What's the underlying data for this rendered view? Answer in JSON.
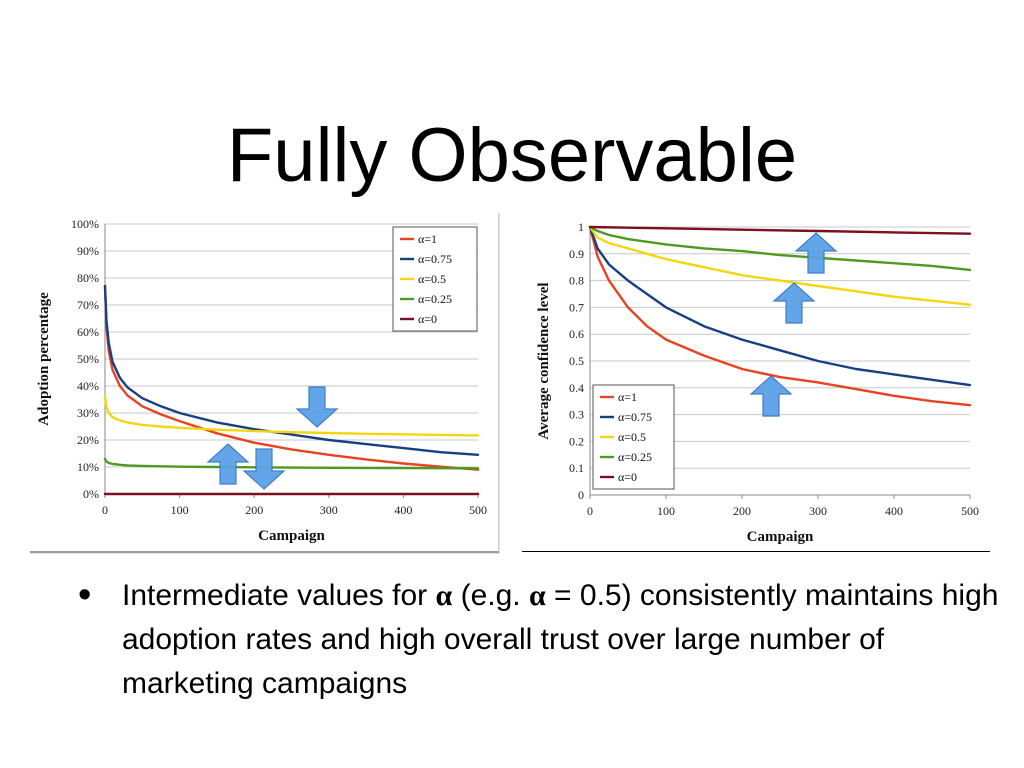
{
  "slide": {
    "title": "Fully Observable",
    "bullet": {
      "part1": "Intermediate values for ",
      "alpha1": "α",
      "part2": " (e.g. ",
      "alpha2": "α",
      "part3": " = 0.5) consistently maintains high adoption rates and high overall trust over large number of marketing campaigns"
    }
  },
  "colors": {
    "alpha_1": "#e8431f",
    "alpha_075": "#163f84",
    "alpha_05": "#f5d60e",
    "alpha_025": "#4e9a1f",
    "alpha_0": "#7a1020",
    "arrow": "#5aa1e8"
  },
  "chart_data": [
    {
      "type": "line",
      "xlabel": "Campaign",
      "ylabel": "Adoption percentage",
      "xlim": [
        0,
        500
      ],
      "ylim": [
        0,
        100
      ],
      "xticks": [
        "0",
        "100",
        "200",
        "300",
        "400",
        "500"
      ],
      "yticks": [
        "0%",
        "10%",
        "20%",
        "30%",
        "40%",
        "50%",
        "60%",
        "70%",
        "80%",
        "90%",
        "100%"
      ],
      "grid": true,
      "legend_position": "top-right",
      "series": [
        {
          "name": "α=1",
          "color_key": "alpha_1",
          "x": [
            0,
            2,
            5,
            10,
            20,
            30,
            50,
            75,
            100,
            150,
            200,
            250,
            300,
            350,
            400,
            450,
            500
          ],
          "y": [
            77,
            62,
            53,
            46,
            40,
            36.5,
            32.5,
            29.5,
            27,
            22.5,
            19,
            16.5,
            14.5,
            12.8,
            11.3,
            10.1,
            9
          ]
        },
        {
          "name": "α=0.75",
          "color_key": "alpha_075",
          "x": [
            0,
            2,
            5,
            10,
            20,
            30,
            50,
            75,
            100,
            150,
            200,
            250,
            300,
            350,
            400,
            450,
            500
          ],
          "y": [
            77,
            64,
            56,
            49,
            43,
            39.5,
            35.5,
            32.5,
            30,
            26.5,
            24,
            22,
            20,
            18.5,
            17,
            15.5,
            14.5
          ]
        },
        {
          "name": "α=0.5",
          "color_key": "alpha_05",
          "x": [
            0,
            2,
            5,
            10,
            20,
            30,
            50,
            75,
            100,
            150,
            200,
            250,
            300,
            350,
            400,
            450,
            500
          ],
          "y": [
            36,
            32,
            30,
            28.5,
            27.2,
            26.5,
            25.6,
            25,
            24.5,
            23.8,
            23.3,
            22.9,
            22.6,
            22.3,
            22.1,
            21.9,
            21.7
          ]
        },
        {
          "name": "α=0.25",
          "color_key": "alpha_025",
          "x": [
            0,
            2,
            5,
            10,
            20,
            30,
            50,
            100,
            150,
            200,
            300,
            400,
            500
          ],
          "y": [
            13,
            12,
            11.5,
            11.1,
            10.8,
            10.6,
            10.4,
            10.1,
            10,
            9.9,
            9.7,
            9.6,
            9.5
          ]
        },
        {
          "name": "α=0",
          "color_key": "alpha_0",
          "x": [
            0,
            500
          ],
          "y": [
            0,
            0
          ]
        }
      ]
    },
    {
      "type": "line",
      "xlabel": "Campaign",
      "ylabel": "Average confidence level",
      "xlim": [
        0,
        500
      ],
      "ylim": [
        0,
        1
      ],
      "xticks": [
        "0",
        "100",
        "200",
        "300",
        "400",
        "500"
      ],
      "yticks": [
        "0",
        "0.1",
        "0.2",
        "0.3",
        "0.4",
        "0.5",
        "0.6",
        "0.7",
        "0.8",
        "0.9",
        "1"
      ],
      "grid": true,
      "legend_position": "bottom-left",
      "series": [
        {
          "name": "α=1",
          "color_key": "alpha_1",
          "x": [
            0,
            10,
            25,
            50,
            75,
            100,
            150,
            200,
            250,
            300,
            350,
            400,
            450,
            500
          ],
          "y": [
            1,
            0.89,
            0.8,
            0.7,
            0.63,
            0.58,
            0.52,
            0.47,
            0.44,
            0.42,
            0.395,
            0.37,
            0.35,
            0.335
          ]
        },
        {
          "name": "α=0.75",
          "color_key": "alpha_075",
          "x": [
            0,
            10,
            25,
            50,
            75,
            100,
            150,
            200,
            250,
            300,
            350,
            400,
            450,
            500
          ],
          "y": [
            1,
            0.92,
            0.86,
            0.8,
            0.75,
            0.7,
            0.63,
            0.58,
            0.54,
            0.5,
            0.47,
            0.45,
            0.43,
            0.41
          ]
        },
        {
          "name": "α=0.5",
          "color_key": "alpha_05",
          "x": [
            0,
            10,
            25,
            50,
            100,
            150,
            200,
            250,
            300,
            350,
            400,
            450,
            500
          ],
          "y": [
            1,
            0.96,
            0.94,
            0.92,
            0.88,
            0.85,
            0.82,
            0.8,
            0.78,
            0.76,
            0.74,
            0.725,
            0.71
          ]
        },
        {
          "name": "α=0.25",
          "color_key": "alpha_025",
          "x": [
            0,
            10,
            25,
            50,
            100,
            150,
            200,
            250,
            300,
            350,
            400,
            450,
            500
          ],
          "y": [
            1,
            0.985,
            0.97,
            0.955,
            0.935,
            0.92,
            0.91,
            0.895,
            0.885,
            0.875,
            0.865,
            0.855,
            0.84
          ]
        },
        {
          "name": "α=0",
          "color_key": "alpha_0",
          "x": [
            0,
            100,
            200,
            300,
            400,
            500
          ],
          "y": [
            1,
            0.995,
            0.99,
            0.985,
            0.98,
            0.975
          ]
        }
      ]
    }
  ]
}
